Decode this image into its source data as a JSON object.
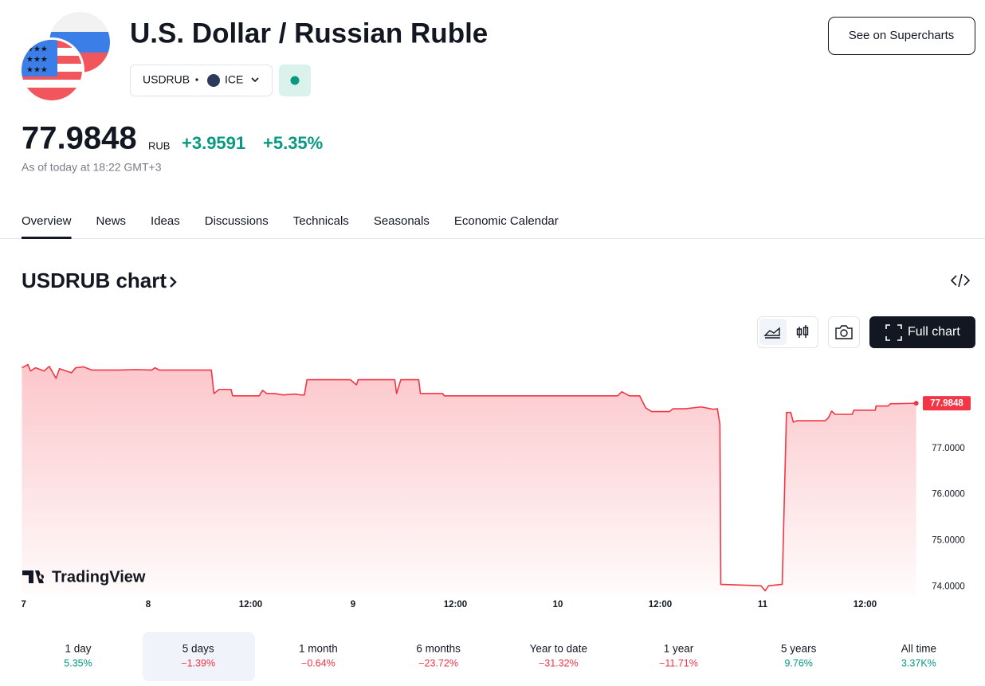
{
  "header": {
    "title": "U.S. Dollar / Russian Ruble",
    "symbol": "USDRUB",
    "exchange": "ICE",
    "supercharts_button": "See on Supercharts"
  },
  "quote": {
    "price": "77.9848",
    "currency": "RUB",
    "change": "+3.9591",
    "change_percent": "+5.35%",
    "as_of": "As of today at 18:22 GMT+3"
  },
  "tabs": [
    "Overview",
    "News",
    "Ideas",
    "Discussions",
    "Technicals",
    "Seasonals",
    "Economic Calendar"
  ],
  "chart_heading": "USDRUB chart",
  "full_chart_button": "Full chart",
  "watermark": "TradingView",
  "chart_data": {
    "type": "area",
    "x": [
      9.2,
      9.9,
      10.2,
      10.8,
      11.8,
      12.4,
      13.2,
      13.6,
      15.0,
      15.5,
      16.4,
      17.4,
      18.8,
      20.6,
      22.5,
      24.4,
      24.8,
      25.3,
      31.4,
      31.7,
      32.3,
      33.7,
      33.9,
      37.0,
      37.4,
      37.9,
      38.8,
      39.8,
      41.2,
      41.9,
      42.3,
      42.6,
      47.7,
      48.4,
      48.6,
      52.9,
      53.1,
      53.6,
      55.7,
      55.9,
      58.5,
      58.7,
      79.0,
      79.5,
      80.4,
      81.6,
      82.3,
      83.0,
      85.1,
      85.5,
      86.9,
      88.8,
      90.2,
      90.7,
      91.0,
      91.1,
      95.8,
      96.3,
      96.7,
      98.3,
      98.8,
      99.3,
      99.6,
      100.0,
      103.3,
      103.7,
      104.1,
      104.5,
      106.5,
      106.7,
      109.2,
      109.3,
      110.7,
      111.0,
      111.7,
      114.0
    ],
    "series": [
      {
        "name": "USDRUB",
        "color": "#f23645",
        "values": [
          78.75,
          78.82,
          78.68,
          78.75,
          78.68,
          78.78,
          78.52,
          78.73,
          78.64,
          78.75,
          78.77,
          78.7,
          78.7,
          78.7,
          78.71,
          78.7,
          78.75,
          78.7,
          78.7,
          78.19,
          78.28,
          78.28,
          78.14,
          78.14,
          78.26,
          78.19,
          78.19,
          78.16,
          78.18,
          78.16,
          78.16,
          78.49,
          78.49,
          78.38,
          78.49,
          78.49,
          78.19,
          78.49,
          78.49,
          78.19,
          78.19,
          78.14,
          78.14,
          78.23,
          78.14,
          78.14,
          77.88,
          77.8,
          77.8,
          77.86,
          77.86,
          77.9,
          77.85,
          77.86,
          77.52,
          74.05,
          74.02,
          73.91,
          74.02,
          74.05,
          77.78,
          77.78,
          77.57,
          77.6,
          77.6,
          77.66,
          77.81,
          77.74,
          77.74,
          77.83,
          77.83,
          77.92,
          77.92,
          77.97,
          77.97,
          77.98
        ]
      }
    ],
    "last_value_label": "77.9848",
    "xlim": [
      9.15,
      114.5
    ],
    "xticks": [
      {
        "value": 9.4,
        "label": "7"
      },
      {
        "value": 24,
        "label": "8"
      },
      {
        "value": 36,
        "label": "12:00"
      },
      {
        "value": 48,
        "label": "9"
      },
      {
        "value": 60,
        "label": "12:00"
      },
      {
        "value": 72,
        "label": "10"
      },
      {
        "value": 84,
        "label": "12:00"
      },
      {
        "value": 96,
        "label": "11"
      },
      {
        "value": 108,
        "label": "12:00"
      }
    ],
    "ylim": [
      73.85,
      78.95
    ],
    "yticks": [
      {
        "value": 74,
        "label": "74.0000"
      },
      {
        "value": 75,
        "label": "75.0000"
      },
      {
        "value": 76,
        "label": "76.0000"
      },
      {
        "value": 77,
        "label": "77.0000"
      }
    ]
  },
  "periods": [
    {
      "label": "1 day",
      "change": "5.35%",
      "color": "#089981"
    },
    {
      "label": "5 days",
      "change": "−1.39%",
      "color": "#f23645"
    },
    {
      "label": "1 month",
      "change": "−0.64%",
      "color": "#f23645"
    },
    {
      "label": "6 months",
      "change": "−23.72%",
      "color": "#f23645"
    },
    {
      "label": "Year to date",
      "change": "−31.32%",
      "color": "#f23645"
    },
    {
      "label": "1 year",
      "change": "−11.71%",
      "color": "#f23645"
    },
    {
      "label": "5 years",
      "change": "9.76%",
      "color": "#089981"
    },
    {
      "label": "All time",
      "change": "3.37K%",
      "color": "#089981"
    }
  ]
}
